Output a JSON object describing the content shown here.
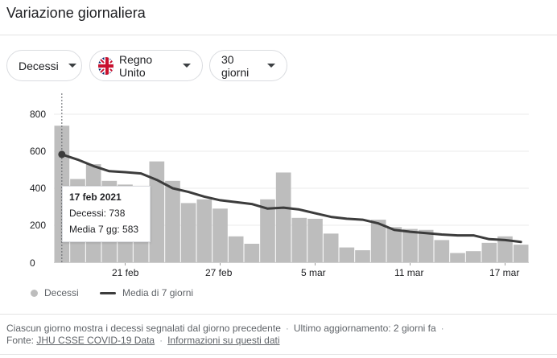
{
  "title": "Variazione giornaliera",
  "filters": {
    "metric": "Decessi",
    "country": "Regno Unito",
    "country_flag_icon": "uk-flag-icon",
    "range": "30 giorni"
  },
  "chart_data": {
    "type": "bar",
    "ylim": [
      0,
      800
    ],
    "yticks": [
      "800",
      "600",
      "400",
      "200",
      "0"
    ],
    "yticks_values": [
      800,
      600,
      400,
      200,
      0
    ],
    "xtick_labels": [
      "21 feb",
      "27 feb",
      "5 mar",
      "11 mar",
      "17 mar"
    ],
    "xtick_indices": [
      4,
      10,
      16,
      22,
      28
    ],
    "grid": true,
    "legend_placement": "bottom-left",
    "series": [
      {
        "name": "Decessi",
        "color": "#bdbdbd",
        "values": [
          738,
          450,
          530,
          440,
          420,
          180,
          545,
          440,
          320,
          340,
          290,
          140,
          100,
          340,
          485,
          240,
          235,
          155,
          80,
          65,
          230,
          190,
          180,
          175,
          120,
          50,
          60,
          105,
          140,
          95
        ]
      },
      {
        "name": "Media di 7 giorni",
        "color": "#3c3c3c",
        "values": [
          583,
          555,
          520,
          492,
          487,
          480,
          445,
          400,
          380,
          355,
          335,
          325,
          315,
          290,
          295,
          285,
          265,
          245,
          235,
          230,
          210,
          175,
          165,
          158,
          150,
          145,
          145,
          125,
          120,
          110
        ]
      }
    ],
    "highlight_index": 0
  },
  "tooltip": {
    "date": "17 feb 2021",
    "deaths_line": "Decessi: 738",
    "avg_line": "Media 7 gg: 583"
  },
  "legend": {
    "bars_label": "Decessi",
    "line_label": "Media di 7 giorni"
  },
  "footer": {
    "note": "Ciascun giorno mostra i decessi segnalati dal giorno precedente",
    "updated": "Ultimo aggiornamento: 2 giorni fa",
    "source_label": "Fonte:",
    "source_link": "JHU CSSE COVID-19 Data",
    "info_link": "Informazioni su questi dati"
  }
}
